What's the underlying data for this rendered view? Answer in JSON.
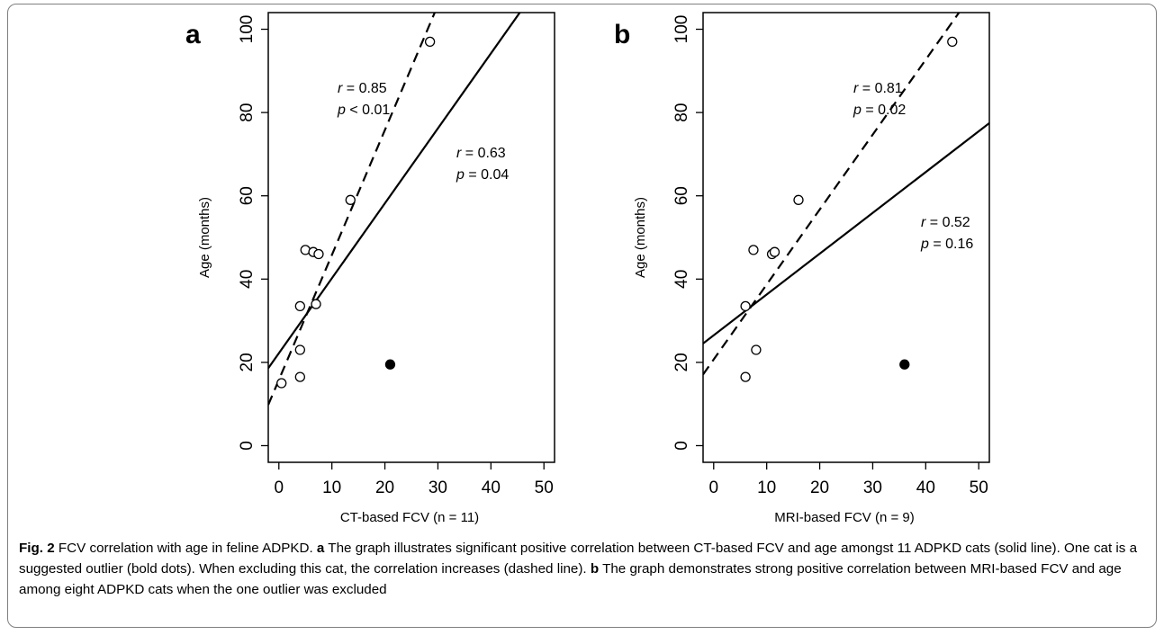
{
  "chart_data": [
    {
      "type": "scatter",
      "panel_label": "a",
      "xlabel": "CT-based FCV (n = 11)",
      "ylabel": "Age (months)",
      "xlim": [
        -2,
        52
      ],
      "ylim": [
        -4,
        104
      ],
      "x_ticks": [
        0,
        10,
        20,
        30,
        40,
        50
      ],
      "y_ticks": [
        0,
        20,
        40,
        60,
        80,
        100
      ],
      "points": [
        {
          "x": 0.5,
          "y": 15,
          "filled": false
        },
        {
          "x": 4,
          "y": 16.5,
          "filled": false
        },
        {
          "x": 4,
          "y": 23,
          "filled": false
        },
        {
          "x": 4,
          "y": 33.5,
          "filled": false
        },
        {
          "x": 7,
          "y": 34,
          "filled": false
        },
        {
          "x": 5,
          "y": 47,
          "filled": false
        },
        {
          "x": 6.5,
          "y": 46.5,
          "filled": false
        },
        {
          "x": 7.5,
          "y": 46,
          "filled": false
        },
        {
          "x": 13.5,
          "y": 59,
          "filled": false
        },
        {
          "x": 28.5,
          "y": 97,
          "filled": false
        },
        {
          "x": 21,
          "y": 19.5,
          "filled": true
        }
      ],
      "fits": [
        {
          "style": "solid",
          "intercept": 22.2,
          "slope": 1.8
        },
        {
          "style": "dashed",
          "intercept": 15.8,
          "slope": 3.0
        }
      ],
      "annotations": [
        {
          "r": "0.85",
          "p_text": "< 0.01",
          "fit": "dashed"
        },
        {
          "r": "0.63",
          "p_text": "= 0.04",
          "fit": "solid"
        }
      ]
    },
    {
      "type": "scatter",
      "panel_label": "b",
      "xlabel": "MRI-based FCV (n = 9)",
      "ylabel": "Age (months)",
      "xlim": [
        -2,
        52
      ],
      "ylim": [
        -4,
        104
      ],
      "x_ticks": [
        0,
        10,
        20,
        30,
        40,
        50
      ],
      "y_ticks": [
        0,
        20,
        40,
        60,
        80,
        100
      ],
      "points": [
        {
          "x": 6,
          "y": 16.5,
          "filled": false
        },
        {
          "x": 8,
          "y": 23,
          "filled": false
        },
        {
          "x": 6,
          "y": 33.5,
          "filled": false
        },
        {
          "x": 7.5,
          "y": 47,
          "filled": false
        },
        {
          "x": 11,
          "y": 46,
          "filled": false
        },
        {
          "x": 11.5,
          "y": 46.5,
          "filled": false
        },
        {
          "x": 16,
          "y": 59,
          "filled": false
        },
        {
          "x": 45,
          "y": 97,
          "filled": false
        },
        {
          "x": 36,
          "y": 19.5,
          "filled": true
        }
      ],
      "fits": [
        {
          "style": "solid",
          "intercept": 26.5,
          "slope": 0.98
        },
        {
          "style": "dashed",
          "intercept": 20.7,
          "slope": 1.8
        }
      ],
      "annotations": [
        {
          "r": "0.81",
          "p_text": "= 0.02",
          "fit": "dashed"
        },
        {
          "r": "0.52",
          "p_text": "= 0.16",
          "fit": "solid"
        }
      ]
    }
  ],
  "caption": {
    "fig_label": "Fig. 2",
    "fig_text": " FCV correlation with age in feline ADPKD. ",
    "a_label": "a",
    "a_text": " The graph illustrates significant positive correlation between CT-based FCV and age amongst 11 ADPKD cats (solid line). One cat is a suggested outlier (bold dots). When excluding this cat, the correlation increases (dashed line). ",
    "b_label": "b",
    "b_text": " The graph demonstrates strong positive correlation between MRI-based FCV and age among eight ADPKD cats when the one outlier was excluded"
  }
}
